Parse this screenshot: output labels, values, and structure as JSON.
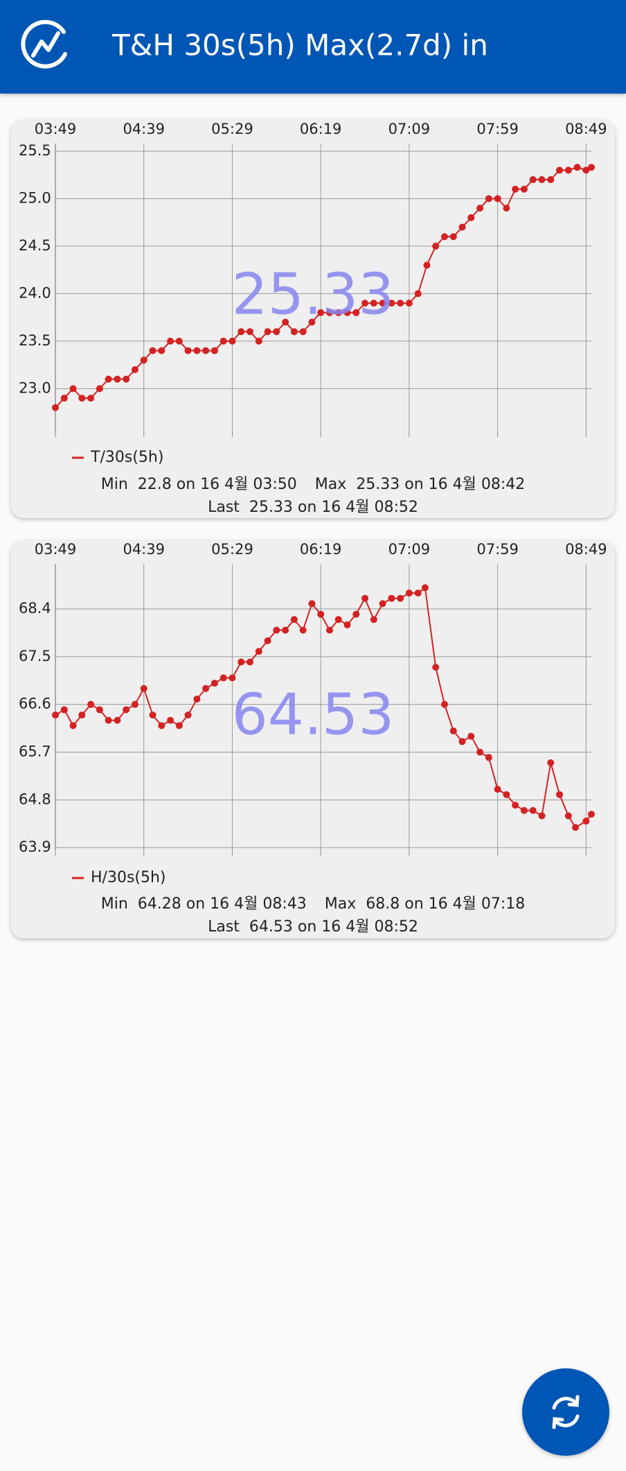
{
  "header": {
    "title": "T&H 30s(5h) Max(2.7d) in"
  },
  "chart_data": [
    {
      "type": "line",
      "x": [
        "03:49",
        "03:54",
        "03:59",
        "04:04",
        "04:09",
        "04:14",
        "04:19",
        "04:24",
        "04:29",
        "04:34",
        "04:39",
        "04:44",
        "04:49",
        "04:54",
        "04:59",
        "05:04",
        "05:09",
        "05:14",
        "05:19",
        "05:24",
        "05:29",
        "05:34",
        "05:39",
        "05:44",
        "05:49",
        "05:54",
        "05:59",
        "06:04",
        "06:09",
        "06:14",
        "06:19",
        "06:24",
        "06:29",
        "06:34",
        "06:39",
        "06:44",
        "06:49",
        "06:54",
        "06:59",
        "07:04",
        "07:09",
        "07:14",
        "07:19",
        "07:24",
        "07:29",
        "07:34",
        "07:39",
        "07:44",
        "07:49",
        "07:54",
        "07:59",
        "08:04",
        "08:09",
        "08:14",
        "08:19",
        "08:24",
        "08:29",
        "08:34",
        "08:39",
        "08:44",
        "08:49",
        "08:52"
      ],
      "xlim": [
        "03:49",
        "08:52"
      ],
      "xticks": [
        "03:49",
        "04:39",
        "05:29",
        "06:19",
        "07:09",
        "07:59",
        "08:49"
      ],
      "ylim": [
        22.55,
        25.58
      ],
      "yticks": [
        {
          "value": 23,
          "label": "23.0"
        },
        23.5,
        {
          "value": 24,
          "label": "24.0"
        },
        24.5,
        {
          "value": 25,
          "label": "25.0"
        },
        25.5
      ],
      "grid": true,
      "series": [
        {
          "name": "T/30s(5h)",
          "color": "#d42222",
          "values": [
            22.8,
            22.9,
            23.0,
            22.9,
            22.9,
            23.0,
            23.1,
            23.1,
            23.1,
            23.2,
            23.3,
            23.4,
            23.4,
            23.5,
            23.5,
            23.4,
            23.4,
            23.4,
            23.4,
            23.5,
            23.5,
            23.6,
            23.6,
            23.5,
            23.6,
            23.6,
            23.7,
            23.6,
            23.6,
            23.7,
            23.8,
            23.8,
            23.8,
            23.8,
            23.8,
            23.9,
            23.9,
            23.9,
            23.9,
            23.9,
            23.9,
            24.0,
            24.3,
            24.5,
            24.6,
            24.6,
            24.7,
            24.8,
            24.9,
            25.0,
            25.0,
            24.9,
            25.1,
            25.1,
            25.2,
            25.2,
            25.2,
            25.3,
            25.3,
            25.33,
            25.3,
            25.33
          ]
        }
      ],
      "current": 25.33,
      "stats": {
        "min_label": "Min",
        "min": "22.8 on 16 4월 03:50",
        "max_label": "Max",
        "max": "25.33 on 16 4월 08:42",
        "last_label": "Last",
        "last": "25.33 on 16 4월 08:52"
      }
    },
    {
      "type": "line",
      "x": [
        "03:49",
        "03:54",
        "03:59",
        "04:04",
        "04:09",
        "04:14",
        "04:19",
        "04:24",
        "04:29",
        "04:34",
        "04:39",
        "04:44",
        "04:49",
        "04:54",
        "04:59",
        "05:04",
        "05:09",
        "05:14",
        "05:19",
        "05:24",
        "05:29",
        "05:34",
        "05:39",
        "05:44",
        "05:49",
        "05:54",
        "05:59",
        "06:04",
        "06:09",
        "06:14",
        "06:19",
        "06:24",
        "06:29",
        "06:34",
        "06:39",
        "06:44",
        "06:49",
        "06:54",
        "06:59",
        "07:04",
        "07:09",
        "07:14",
        "07:18",
        "07:24",
        "07:29",
        "07:34",
        "07:39",
        "07:44",
        "07:49",
        "07:54",
        "07:59",
        "08:04",
        "08:09",
        "08:14",
        "08:19",
        "08:24",
        "08:29",
        "08:34",
        "08:39",
        "08:43",
        "08:49",
        "08:52"
      ],
      "xlim": [
        "03:49",
        "08:52"
      ],
      "xticks": [
        "03:49",
        "04:39",
        "05:29",
        "06:19",
        "07:09",
        "07:59",
        "08:49"
      ],
      "ylim": [
        63.85,
        69.25
      ],
      "yticks": [
        63.9,
        64.8,
        65.7,
        66.6,
        67.5,
        68.4
      ],
      "grid": true,
      "series": [
        {
          "name": "H/30s(5h)",
          "color": "#d42222",
          "values": [
            66.4,
            66.5,
            66.2,
            66.4,
            66.6,
            66.5,
            66.3,
            66.3,
            66.5,
            66.6,
            66.9,
            66.4,
            66.2,
            66.3,
            66.2,
            66.4,
            66.7,
            66.9,
            67.0,
            67.1,
            67.1,
            67.4,
            67.4,
            67.6,
            67.8,
            68.0,
            68.0,
            68.2,
            68.0,
            68.5,
            68.3,
            68.0,
            68.2,
            68.1,
            68.3,
            68.6,
            68.2,
            68.5,
            68.6,
            68.6,
            68.7,
            68.7,
            68.8,
            67.3,
            66.6,
            66.1,
            65.9,
            66.0,
            65.7,
            65.6,
            65.0,
            64.9,
            64.7,
            64.6,
            64.6,
            64.5,
            65.5,
            64.9,
            64.5,
            64.28,
            64.4,
            64.53
          ]
        }
      ],
      "current": 64.53,
      "stats": {
        "min_label": "Min",
        "min": "64.28 on 16 4월 08:43",
        "max_label": "Max",
        "max": "68.8 on 16 4월 07:18",
        "last_label": "Last",
        "last": "64.53 on 16 4월 08:52"
      }
    }
  ]
}
